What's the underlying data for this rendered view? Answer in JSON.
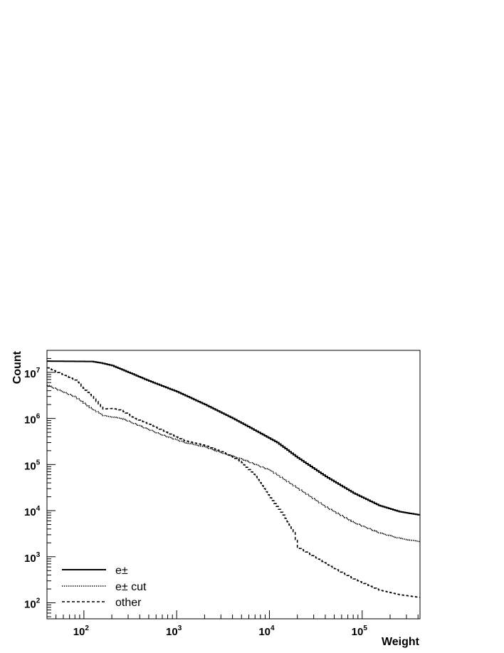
{
  "chart_data": {
    "type": "line",
    "xlabel": "Weight",
    "ylabel": "Count",
    "x_scale": "log",
    "y_scale": "log",
    "xlim": [
      40,
      420000
    ],
    "ylim": [
      45,
      30000000
    ],
    "x_ticks": [
      {
        "base": "10",
        "exp": "2",
        "value": 100
      },
      {
        "base": "10",
        "exp": "3",
        "value": 1000
      },
      {
        "base": "10",
        "exp": "4",
        "value": 10000
      },
      {
        "base": "10",
        "exp": "5",
        "value": 100000
      }
    ],
    "y_ticks": [
      {
        "base": "10",
        "exp": "2",
        "value": 100
      },
      {
        "base": "10",
        "exp": "3",
        "value": 1000
      },
      {
        "base": "10",
        "exp": "4",
        "value": 10000
      },
      {
        "base": "10",
        "exp": "5",
        "value": 100000
      },
      {
        "base": "10",
        "exp": "6",
        "value": 1000000
      },
      {
        "base": "10",
        "exp": "7",
        "value": 10000000
      }
    ],
    "grid": false,
    "legend_position": "bottom-left",
    "series": [
      {
        "name": "e±",
        "style": "solid",
        "color": "#000000",
        "points": [
          [
            40,
            17500000
          ],
          [
            120,
            17200000
          ],
          [
            150,
            16000000
          ],
          [
            200,
            14000000
          ],
          [
            300,
            10000000
          ],
          [
            500,
            6500000
          ],
          [
            1000,
            3800000
          ],
          [
            2000,
            2000000
          ],
          [
            4000,
            1000000
          ],
          [
            8000,
            470000
          ],
          [
            12000,
            300000
          ],
          [
            20000,
            140000
          ],
          [
            40000,
            55000
          ],
          [
            80000,
            24000
          ],
          [
            150000,
            13000
          ],
          [
            250000,
            9500
          ],
          [
            420000,
            8000
          ]
        ]
      },
      {
        "name": "e± cut",
        "style": "dotted",
        "color": "#000000",
        "points": [
          [
            40,
            5200000
          ],
          [
            80,
            2900000
          ],
          [
            120,
            1600000
          ],
          [
            160,
            1150000
          ],
          [
            250,
            1000000
          ],
          [
            400,
            680000
          ],
          [
            700,
            430000
          ],
          [
            1200,
            300000
          ],
          [
            2000,
            240000
          ],
          [
            3000,
            180000
          ],
          [
            5000,
            130000
          ],
          [
            10000,
            75000
          ],
          [
            20000,
            30000
          ],
          [
            40000,
            12000
          ],
          [
            80000,
            5500
          ],
          [
            150000,
            3300
          ],
          [
            250000,
            2500
          ],
          [
            420000,
            2100
          ]
        ]
      },
      {
        "name": "other",
        "style": "dashed",
        "color": "#000000",
        "points": [
          [
            40,
            12500000
          ],
          [
            80,
            6800000
          ],
          [
            120,
            3000000
          ],
          [
            160,
            1600000
          ],
          [
            200,
            1650000
          ],
          [
            250,
            1500000
          ],
          [
            350,
            1000000
          ],
          [
            500,
            750000
          ],
          [
            800,
            480000
          ],
          [
            1200,
            330000
          ],
          [
            2000,
            260000
          ],
          [
            3000,
            190000
          ],
          [
            4000,
            145000
          ],
          [
            5000,
            110000
          ],
          [
            7000,
            55000
          ],
          [
            10000,
            19000
          ],
          [
            14000,
            8000
          ],
          [
            18000,
            3500
          ],
          [
            20000,
            1600
          ],
          [
            30000,
            1000
          ],
          [
            50000,
            550
          ],
          [
            80000,
            330
          ],
          [
            150000,
            190
          ],
          [
            250000,
            150
          ],
          [
            420000,
            130
          ]
        ]
      }
    ]
  }
}
